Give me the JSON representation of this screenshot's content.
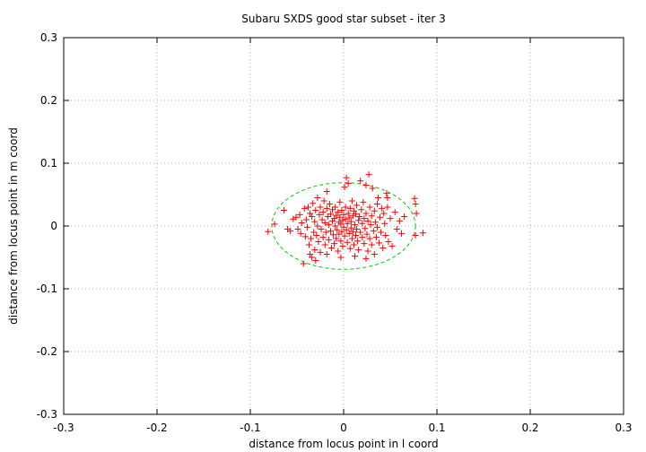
{
  "chart_data": {
    "type": "scatter",
    "title": "Subaru SXDS good star subset - iter 3",
    "xlabel": "distance from locus point in l coord",
    "ylabel": "distance from locus point in m coord",
    "xlim": [
      -0.3,
      0.3
    ],
    "ylim": [
      -0.3,
      0.3
    ],
    "xticks": [
      -0.3,
      -0.2,
      -0.1,
      0,
      0.1,
      0.2,
      0.3
    ],
    "yticks": [
      -0.3,
      -0.2,
      -0.1,
      0,
      0.1,
      0.2,
      0.3
    ],
    "xtick_labels": [
      "-0.3",
      "-0.2",
      "-0.1",
      "0",
      "0.1",
      "0.2",
      "0.3"
    ],
    "ytick_labels": [
      "-0.3",
      "-0.2",
      "-0.1",
      "0",
      "0.1",
      "0.2",
      "0.3"
    ],
    "grid": true,
    "point_color": "#ff0000",
    "ellipse_color": "#00cc00",
    "ellipse": {
      "center": [
        0,
        0
      ],
      "semi_axis_x": 0.077,
      "semi_axis_y": 0.069
    },
    "points": [
      [
        -0.081,
        -0.009
      ],
      [
        -0.074,
        0.003
      ],
      [
        -0.064,
        0.025
      ],
      [
        -0.06,
        -0.005
      ],
      [
        -0.057,
        -0.008
      ],
      [
        -0.054,
        0.011
      ],
      [
        -0.051,
        0.014
      ],
      [
        -0.049,
        -0.005
      ],
      [
        -0.047,
        0.018
      ],
      [
        -0.046,
        -0.012
      ],
      [
        -0.045,
        0.005
      ],
      [
        -0.043,
        -0.06
      ],
      [
        -0.042,
        0.028
      ],
      [
        -0.041,
        -0.017
      ],
      [
        -0.04,
        0.01
      ],
      [
        -0.039,
        -0.002
      ],
      [
        -0.038,
        0.03
      ],
      [
        -0.037,
        -0.03
      ],
      [
        -0.036,
        0.02
      ],
      [
        -0.035,
        -0.02
      ],
      [
        -0.034,
        0.015
      ],
      [
        -0.034,
        -0.05
      ],
      [
        -0.033,
        0.036
      ],
      [
        -0.032,
        -0.01
      ],
      [
        -0.031,
        0.007
      ],
      [
        -0.031,
        -0.038
      ],
      [
        -0.03,
        0.025
      ],
      [
        -0.029,
        -0.015
      ],
      [
        -0.028,
        0.045
      ],
      [
        -0.028,
        0.0
      ],
      [
        -0.027,
        -0.025
      ],
      [
        -0.026,
        0.018
      ],
      [
        -0.025,
        -0.042
      ],
      [
        -0.025,
        0.03
      ],
      [
        -0.024,
        -0.005
      ],
      [
        -0.023,
        0.01
      ],
      [
        -0.022,
        -0.018
      ],
      [
        -0.022,
        0.022
      ],
      [
        -0.021,
        0.04
      ],
      [
        -0.02,
        -0.03
      ],
      [
        -0.02,
        0.005
      ],
      [
        -0.019,
        -0.01
      ],
      [
        -0.018,
        0.028
      ],
      [
        -0.018,
        -0.045
      ],
      [
        -0.017,
        0.015
      ],
      [
        -0.016,
        -0.022
      ],
      [
        -0.016,
        0.002
      ],
      [
        -0.015,
        0.035
      ],
      [
        -0.014,
        -0.008
      ],
      [
        -0.014,
        0.019
      ],
      [
        -0.013,
        -0.035
      ],
      [
        -0.012,
        0.008
      ],
      [
        -0.012,
        0.026
      ],
      [
        -0.011,
        -0.014
      ],
      [
        -0.01,
        0.012
      ],
      [
        -0.01,
        -0.028
      ],
      [
        -0.009,
        0.0
      ],
      [
        -0.009,
        0.03
      ],
      [
        -0.008,
        -0.02
      ],
      [
        -0.008,
        0.017
      ],
      [
        -0.007,
        -0.006
      ],
      [
        -0.006,
        0.022
      ],
      [
        -0.006,
        -0.04
      ],
      [
        -0.005,
        0.006
      ],
      [
        -0.005,
        -0.013
      ],
      [
        -0.004,
        0.014
      ],
      [
        -0.004,
        0.038
      ],
      [
        -0.003,
        -0.024
      ],
      [
        -0.003,
        0.003
      ],
      [
        -0.002,
        0.025
      ],
      [
        -0.002,
        -0.009
      ],
      [
        -0.001,
        0.009
      ],
      [
        -0.001,
        -0.032
      ],
      [
        0.0,
        0.018
      ],
      [
        0.0,
        -0.002
      ],
      [
        0.001,
        0.062
      ],
      [
        0.001,
        -0.016
      ],
      [
        0.002,
        0.011
      ],
      [
        0.002,
        0.03
      ],
      [
        0.003,
        -0.006
      ],
      [
        0.003,
        0.077
      ],
      [
        0.004,
        0.004
      ],
      [
        0.004,
        -0.026
      ],
      [
        0.005,
        0.02
      ],
      [
        0.005,
        0.068
      ],
      [
        0.006,
        -0.012
      ],
      [
        0.006,
        0.013
      ],
      [
        0.007,
        -0.036
      ],
      [
        0.007,
        0.028
      ],
      [
        0.008,
        -0.003
      ],
      [
        0.008,
        0.007
      ],
      [
        0.009,
        -0.02
      ],
      [
        0.009,
        0.04
      ],
      [
        0.01,
        0.016
      ],
      [
        0.01,
        -0.009
      ],
      [
        0.011,
        0.024
      ],
      [
        0.011,
        -0.03
      ],
      [
        0.012,
        0.002
      ],
      [
        0.013,
        -0.015
      ],
      [
        0.013,
        0.019
      ],
      [
        0.014,
        -0.005
      ],
      [
        0.014,
        0.033
      ],
      [
        0.015,
        -0.024
      ],
      [
        0.016,
        0.009
      ],
      [
        0.016,
        -0.038
      ],
      [
        0.017,
        0.015
      ],
      [
        0.018,
        -0.01
      ],
      [
        0.018,
        0.072
      ],
      [
        0.019,
        0.026
      ],
      [
        0.02,
        -0.018
      ],
      [
        0.02,
        0.004
      ],
      [
        0.021,
        0.038
      ],
      [
        0.022,
        -0.028
      ],
      [
        0.022,
        0.012
      ],
      [
        0.023,
        -0.004
      ],
      [
        0.024,
        0.02
      ],
      [
        0.024,
        0.065
      ],
      [
        0.025,
        -0.013
      ],
      [
        0.026,
        0.008
      ],
      [
        0.026,
        -0.04
      ],
      [
        0.027,
        0.082
      ],
      [
        0.028,
        -0.02
      ],
      [
        0.028,
        0.03
      ],
      [
        0.029,
        0.002
      ],
      [
        0.03,
        -0.03
      ],
      [
        0.03,
        0.016
      ],
      [
        0.031,
        0.06
      ],
      [
        0.032,
        -0.008
      ],
      [
        0.033,
        0.024
      ],
      [
        0.033,
        -0.045
      ],
      [
        0.034,
        0.006
      ],
      [
        0.035,
        -0.018
      ],
      [
        0.036,
        0.035
      ],
      [
        0.036,
        -0.002
      ],
      [
        0.037,
        0.045
      ],
      [
        0.038,
        -0.027
      ],
      [
        0.039,
        0.014
      ],
      [
        0.04,
        -0.01
      ],
      [
        0.041,
        0.028
      ],
      [
        0.042,
        -0.035
      ],
      [
        0.043,
        0.02
      ],
      [
        0.044,
        0.004
      ],
      [
        0.045,
        -0.015
      ],
      [
        0.046,
        0.052
      ],
      [
        0.047,
        0.03
      ],
      [
        0.048,
        -0.025
      ],
      [
        0.05,
        0.012
      ],
      [
        0.052,
        -0.032
      ],
      [
        0.055,
        0.022
      ],
      [
        0.057,
        -0.005
      ],
      [
        0.06,
        0.008
      ],
      [
        0.062,
        -0.012
      ],
      [
        0.065,
        0.015
      ],
      [
        0.076,
        0.044
      ],
      [
        0.077,
        0.035
      ],
      [
        0.078,
        0.02
      ],
      [
        0.077,
        -0.015
      ],
      [
        0.085,
        -0.011
      ],
      [
        -0.036,
        -0.045
      ],
      [
        -0.03,
        -0.055
      ],
      [
        -0.018,
        0.055
      ],
      [
        -0.003,
        -0.05
      ],
      [
        0.012,
        -0.048
      ],
      [
        0.024,
        -0.052
      ],
      [
        0.047,
        0.045
      ]
    ]
  }
}
